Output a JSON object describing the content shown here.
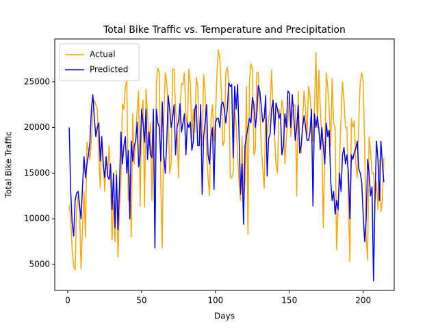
{
  "chart_data": {
    "type": "line",
    "title": "Total Bike Traffic vs. Temperature and Precipitation",
    "x_label": "Days",
    "y_label": "Total Bike Traffic",
    "legend": "upper left",
    "grid": false,
    "xlim": [
      -8.8,
      221
    ],
    "ylim": [
      2150,
      29700
    ],
    "xticks": [
      0,
      50,
      100,
      150,
      200
    ],
    "yticks": [
      5000,
      10000,
      15000,
      20000,
      25000
    ],
    "x": [
      1,
      2,
      3,
      4,
      5,
      6,
      7,
      8,
      9,
      10,
      11,
      12,
      13,
      14,
      15,
      16,
      17,
      18,
      19,
      20,
      21,
      22,
      23,
      24,
      25,
      26,
      27,
      28,
      29,
      30,
      31,
      32,
      33,
      34,
      35,
      36,
      37,
      38,
      39,
      40,
      41,
      42,
      43,
      44,
      45,
      46,
      47,
      48,
      49,
      50,
      51,
      52,
      53,
      54,
      55,
      56,
      57,
      58,
      59,
      60,
      61,
      62,
      63,
      64,
      65,
      66,
      67,
      68,
      69,
      70,
      71,
      72,
      73,
      74,
      75,
      76,
      77,
      78,
      79,
      80,
      81,
      82,
      83,
      84,
      85,
      86,
      87,
      88,
      89,
      90,
      91,
      92,
      93,
      94,
      95,
      96,
      97,
      98,
      99,
      100,
      101,
      102,
      103,
      104,
      105,
      106,
      107,
      108,
      109,
      110,
      111,
      112,
      113,
      114,
      115,
      116,
      117,
      118,
      119,
      120,
      121,
      122,
      123,
      124,
      125,
      126,
      127,
      128,
      129,
      130,
      131,
      132,
      133,
      134,
      135,
      136,
      137,
      138,
      139,
      140,
      141,
      142,
      143,
      144,
      145,
      146,
      147,
      148,
      149,
      150,
      151,
      152,
      153,
      154,
      155,
      156,
      157,
      158,
      159,
      160,
      161,
      162,
      163,
      164,
      165,
      166,
      167,
      168,
      169,
      170,
      171,
      172,
      173,
      174,
      175,
      176,
      177,
      178,
      179,
      180,
      181,
      182,
      183,
      184,
      185,
      186,
      187,
      188,
      189,
      190,
      191,
      192,
      193,
      194,
      195,
      196,
      197,
      198,
      199,
      200,
      201,
      202,
      203,
      204,
      205,
      206,
      207,
      208,
      209,
      210,
      211,
      212,
      213,
      214
    ],
    "series": [
      {
        "name": "Actual",
        "color": "#ffa500",
        "values": [
          11500,
          10000,
          6500,
          4800,
          4400,
          11000,
          12500,
          11000,
          4500,
          9000,
          13000,
          8000,
          18400,
          17500,
          16500,
          18500,
          22000,
          23000,
          22500,
          22000,
          17000,
          13400,
          19000,
          16500,
          13000,
          16800,
          15000,
          18000,
          14000,
          7700,
          12000,
          7500,
          15300,
          5800,
          11000,
          14000,
          22600,
          22000,
          24500,
          25100,
          12000,
          14800,
          8000,
          21500,
          16000,
          19000,
          22000,
          24000,
          11400,
          21500,
          23000,
          11300,
          24200,
          21500,
          18000,
          20500,
          12000,
          20000,
          7700,
          25000,
          26500,
          26000,
          13600,
          6800,
          21000,
          26000,
          25000,
          22000,
          15000,
          16000,
          26400,
          26400,
          22000,
          20000,
          14500,
          22000,
          24800,
          24700,
          26000,
          21500,
          20000,
          26400,
          25000,
          18800,
          22000,
          19500,
          25500,
          24500,
          19500,
          19000,
          18000,
          25800,
          24000,
          17000,
          14500,
          12500,
          21000,
          22500,
          18500,
          21000,
          26000,
          28500,
          27500,
          24000,
          18000,
          18500,
          26000,
          26600,
          25000,
          14500,
          14500,
          15000,
          22000,
          20500,
          17000,
          14000,
          12000,
          19000,
          11800,
          14000,
          24500,
          8300,
          25000,
          27000,
          26300,
          17000,
          17500,
          26000,
          26000,
          22000,
          18000,
          15500,
          13300,
          22000,
          19000,
          21000,
          22000,
          26300,
          22000,
          19000,
          16000,
          15000,
          22000,
          21000,
          23000,
          22000,
          16000,
          19000,
          20500,
          23700,
          19000,
          21500,
          22500,
          22400,
          12500,
          24000,
          18000,
          17200,
          21000,
          24000,
          22000,
          19000,
          24500,
          23500,
          21000,
          18500,
          22000,
          28200,
          20000,
          26300,
          22000,
          19000,
          9000,
          17000,
          26000,
          24500,
          22000,
          18000,
          25300,
          20500,
          20000,
          6600,
          11000,
          16500,
          21000,
          25000,
          23000,
          20000,
          20000,
          12000,
          5300,
          21000,
          20000,
          20700,
          16000,
          14500,
          20600,
          25000,
          26000,
          25000,
          18000,
          8000,
          5500,
          19000,
          17500,
          15000,
          15000,
          12000,
          14000,
          11000,
          16500,
          10800,
          12000,
          16700
        ]
      },
      {
        "name": "Predicted",
        "color": "#0000ff",
        "values": [
          20000,
          13000,
          9500,
          8100,
          12000,
          12800,
          13000,
          11500,
          10000,
          13500,
          16800,
          14500,
          16000,
          17000,
          18300,
          22000,
          23600,
          21000,
          19000,
          20000,
          20500,
          16300,
          19000,
          16000,
          14500,
          16800,
          14700,
          14300,
          16000,
          11000,
          15000,
          9000,
          14800,
          8800,
          13500,
          19500,
          16000,
          18000,
          19000,
          15000,
          17500,
          10000,
          18500,
          16300,
          18000,
          18500,
          20600,
          15700,
          17000,
          22000,
          20500,
          18400,
          22000,
          16500,
          19500,
          17000,
          16700,
          22000,
          6800,
          22000,
          20500,
          20000,
          16300,
          22800,
          17000,
          15000,
          18200,
          23500,
          22000,
          20000,
          21000,
          22500,
          17000,
          20000,
          20700,
          22600,
          19500,
          20500,
          21500,
          17000,
          20500,
          20000,
          20600,
          17500,
          18500,
          22000,
          22500,
          18000,
          18000,
          22500,
          12700,
          19000,
          20500,
          22500,
          17000,
          16000,
          19000,
          20000,
          13200,
          20500,
          21000,
          21000,
          20000,
          22500,
          22800,
          22000,
          20500,
          22000,
          24900,
          24500,
          24700,
          16700,
          24500,
          22000,
          24700,
          19000,
          12700,
          16000,
          9400,
          18000,
          19000,
          20000,
          21000,
          20500,
          23300,
          22500,
          20000,
          21500,
          24600,
          24000,
          22300,
          20600,
          21000,
          23500,
          14700,
          18800,
          19300,
          22000,
          23000,
          19200,
          22700,
          22000,
          21000,
          21500,
          17000,
          18000,
          21500,
          20000,
          24000,
          23800,
          20000,
          23600,
          21300,
          18600,
          20000,
          22400,
          17200,
          18000,
          20000,
          21300,
          20000,
          18600,
          18600,
          19500,
          22000,
          11400,
          21500,
          20000,
          21200,
          19800,
          17600,
          20000,
          18000,
          16000,
          20500,
          19000,
          19700,
          14200,
          12000,
          13000,
          10500,
          12000,
          11000,
          15000,
          13000,
          17000,
          17800,
          16000,
          17000,
          15000,
          10000,
          17000,
          16500,
          17300,
          17700,
          18500,
          15500,
          15000,
          14000,
          10500,
          7500,
          9800,
          16500,
          15000,
          12500,
          13500,
          3200,
          12200,
          18500,
          16500,
          12000,
          18500,
          16000,
          14000
        ]
      }
    ]
  }
}
